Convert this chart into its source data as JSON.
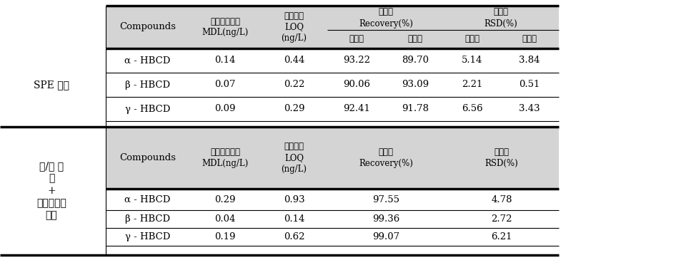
{
  "background_color": "#ffffff",
  "header_bg_color": "#d4d4d4",
  "section1_label": "SPE 방법",
  "section2_label_lines": [
    "액/액 추",
    "웃",
    "+",
    "실리카콜럼",
    "정제"
  ],
  "header1_compounds": "Compounds",
  "header1_mdl": "방법검출한계\nMDL(ng/L)",
  "header1_loq": "정량한계\nLOQ\n(ng/L)",
  "header1_rec": "회수율\nRecovery(%)",
  "header1_rsd": "정밀도\nRSD(%)",
  "header1_rec_sub1": "저농도",
  "header1_rec_sub2": "고농도",
  "header1_rsd_sub1": "저농도",
  "header1_rsd_sub2": "고농도",
  "header2_compounds": "Compounds",
  "header2_mdl": "방법검출한계\nMDL(ng/L)",
  "header2_loq": "정량한계\nLOQ\n(ng/L)",
  "header2_rec": "회수율\nRecovery(%)",
  "header2_rsd": "정밀도\nRSD(%)",
  "section1_rows": [
    {
      "compound": "α - HBCD",
      "mdl": "0.14",
      "loq": "0.44",
      "rec_low": "93.22",
      "rec_high": "89.70",
      "rsd_low": "5.14",
      "rsd_high": "3.84"
    },
    {
      "compound": "β - HBCD",
      "mdl": "0.07",
      "loq": "0.22",
      "rec_low": "90.06",
      "rec_high": "93.09",
      "rsd_low": "2.21",
      "rsd_high": "0.51"
    },
    {
      "compound": "γ - HBCD",
      "mdl": "0.09",
      "loq": "0.29",
      "rec_low": "92.41",
      "rec_high": "91.78",
      "rsd_low": "6.56",
      "rsd_high": "3.43"
    }
  ],
  "section2_rows": [
    {
      "compound": "α - HBCD",
      "mdl": "0.29",
      "loq": "0.93",
      "rec": "97.55",
      "rsd": "4.78"
    },
    {
      "compound": "β - HBCD",
      "mdl": "0.04",
      "loq": "0.14",
      "rec": "99.36",
      "rsd": "2.72"
    },
    {
      "compound": "γ - HBCD",
      "mdl": "0.19",
      "loq": "0.62",
      "rec": "99.07",
      "rsd": "6.21"
    }
  ]
}
